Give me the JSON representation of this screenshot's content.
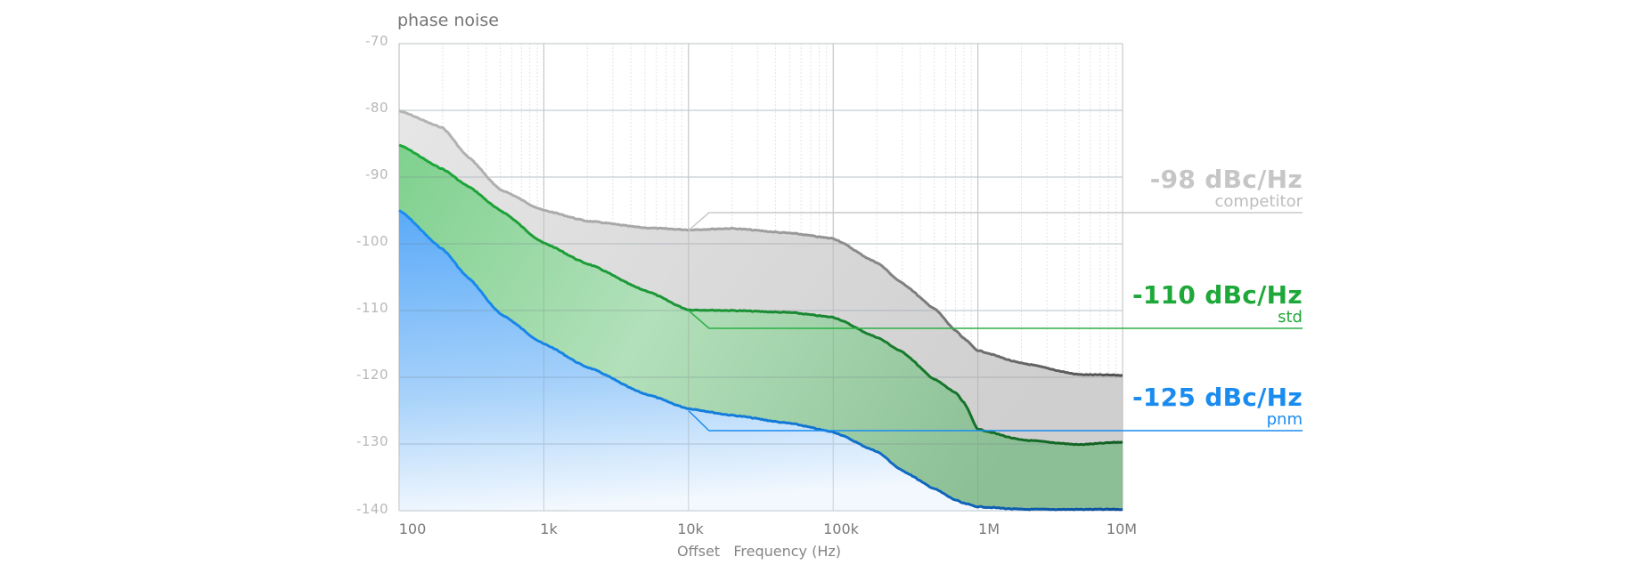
{
  "chart_data": {
    "type": "area",
    "title": "phase noise",
    "xlabel": "Offset   Frequency (Hz)",
    "ylabel": "",
    "xscale": "log",
    "xlim": [
      100,
      10000000
    ],
    "ylim": [
      -140,
      -70
    ],
    "grid": true,
    "x_tick_labels": [
      "100",
      "1k",
      "10k",
      "100k",
      "1M",
      "10M"
    ],
    "x_tick_values": [
      100,
      1000,
      10000,
      100000,
      1000000,
      10000000
    ],
    "y_tick_labels": [
      "-70",
      "-80",
      "-90",
      "-100",
      "-110",
      "-120",
      "-130",
      "-140"
    ],
    "y_tick_values": [
      -70,
      -80,
      -90,
      -100,
      -110,
      -120,
      -130,
      -140
    ],
    "x": [
      100,
      200,
      300,
      500,
      1000,
      2000,
      5000,
      10000,
      20000,
      50000,
      100000,
      200000,
      300000,
      500000,
      700000,
      800000,
      1000000,
      2000000,
      5000000,
      10000000
    ],
    "series": [
      {
        "name": "competitor",
        "color": "#b0b0b0",
        "color_end": "#555555",
        "values": [
          -80.1,
          -82.6,
          -87.0,
          -91.9,
          -95.0,
          -96.6,
          -97.6,
          -97.9,
          -97.7,
          -98.4,
          -99.2,
          -102.8,
          -105.9,
          -109.7,
          -113.0,
          -114.2,
          -116.0,
          -117.9,
          -119.6,
          -119.7
        ]
      },
      {
        "name": "std",
        "color": "#22a83c",
        "color_end": "#136b25",
        "values": [
          -85.2,
          -88.8,
          -91.4,
          -95.0,
          -99.9,
          -103.0,
          -107.0,
          -109.9,
          -110.0,
          -110.3,
          -111.0,
          -114.0,
          -116.2,
          -120.3,
          -122.3,
          -123.8,
          -127.8,
          -129.4,
          -130.1,
          -129.7
        ]
      },
      {
        "name": "pnm",
        "color": "#1a8cf0",
        "color_end": "#0b4f9e",
        "values": [
          -95.0,
          -100.8,
          -105.1,
          -110.5,
          -115.0,
          -118.5,
          -122.5,
          -124.7,
          -125.7,
          -126.9,
          -128.2,
          -131.1,
          -134.0,
          -136.7,
          -138.4,
          -138.9,
          -139.4,
          -139.8,
          -139.8,
          -139.8
        ]
      }
    ],
    "annotations": [
      {
        "series": "competitor",
        "value": "-98 dBc/Hz",
        "label": "competitor",
        "at_x": 10000,
        "at_y": -98
      },
      {
        "series": "std",
        "value": "-110 dBc/Hz",
        "label": "std",
        "at_x": 10000,
        "at_y": -110
      },
      {
        "series": "pnm",
        "value": "-125 dBc/Hz",
        "label": "pnm",
        "at_x": 10000,
        "at_y": -125
      }
    ],
    "legend_position": "right (callouts)"
  },
  "callouts": {
    "competitor": {
      "value": "-98 dBc/Hz",
      "label": "competitor"
    },
    "std": {
      "value": "-110 dBc/Hz",
      "label": "std"
    },
    "pnm": {
      "value": "-125 dBc/Hz",
      "label": "pnm"
    }
  },
  "axis": {
    "title": "phase noise",
    "x_title": "Offset   Frequency (Hz)",
    "x_ticks": [
      "100",
      "1k",
      "10k",
      "100k",
      "1M",
      "10M"
    ],
    "y_ticks": [
      "-70",
      "-80",
      "-90",
      "-100",
      "-110",
      "-120",
      "-130",
      "-140"
    ]
  }
}
